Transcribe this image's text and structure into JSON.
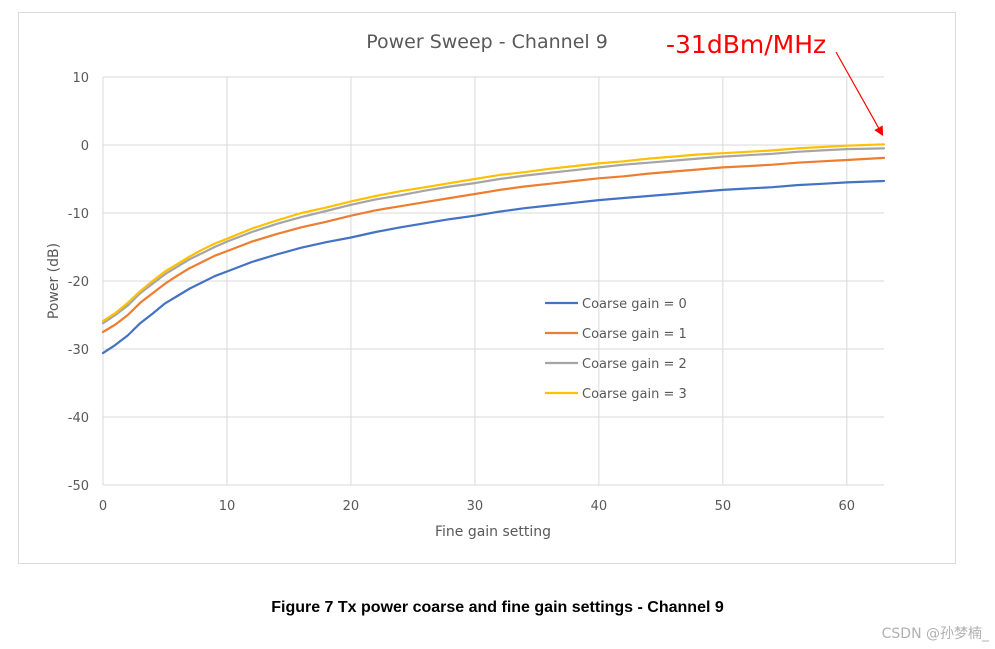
{
  "chart_data": {
    "type": "line",
    "title": "Power Sweep - Channel 9",
    "xlabel": "Fine gain setting",
    "ylabel": "Power (dB)",
    "xlim": [
      0,
      63
    ],
    "ylim": [
      -50,
      10
    ],
    "x_ticks": [
      0,
      10,
      20,
      30,
      40,
      50,
      60
    ],
    "y_ticks": [
      10,
      0,
      -10,
      -20,
      -30,
      -40,
      -50
    ],
    "grid": true,
    "legend_position": "center-right",
    "x": [
      0,
      1,
      2,
      3,
      4,
      5,
      6,
      7,
      8,
      9,
      10,
      12,
      14,
      16,
      18,
      20,
      22,
      24,
      26,
      28,
      30,
      32,
      34,
      36,
      38,
      40,
      42,
      44,
      46,
      48,
      50,
      52,
      54,
      56,
      58,
      60,
      63
    ],
    "series": [
      {
        "name": "Coarse gain = 0",
        "color": "#4472c4",
        "values": [
          -30.6,
          -29.4,
          -28.0,
          -26.2,
          -24.8,
          -23.3,
          -22.2,
          -21.1,
          -20.2,
          -19.3,
          -18.6,
          -17.2,
          -16.1,
          -15.1,
          -14.3,
          -13.6,
          -12.8,
          -12.1,
          -11.5,
          -10.9,
          -10.4,
          -9.8,
          -9.3,
          -8.9,
          -8.5,
          -8.1,
          -7.8,
          -7.5,
          -7.2,
          -6.9,
          -6.6,
          -6.4,
          -6.2,
          -5.9,
          -5.7,
          -5.5,
          -5.3
        ]
      },
      {
        "name": "Coarse gain = 1",
        "color": "#ed7d31",
        "values": [
          -27.5,
          -26.4,
          -25.0,
          -23.2,
          -21.8,
          -20.4,
          -19.2,
          -18.1,
          -17.2,
          -16.3,
          -15.6,
          -14.2,
          -13.1,
          -12.1,
          -11.3,
          -10.4,
          -9.6,
          -9.0,
          -8.4,
          -7.8,
          -7.2,
          -6.6,
          -6.1,
          -5.7,
          -5.3,
          -4.9,
          -4.6,
          -4.2,
          -3.9,
          -3.6,
          -3.3,
          -3.1,
          -2.9,
          -2.6,
          -2.4,
          -2.2,
          -1.9
        ]
      },
      {
        "name": "Coarse gain = 2",
        "color": "#a5a5a5",
        "values": [
          -26.2,
          -25.0,
          -23.6,
          -21.8,
          -20.4,
          -19.0,
          -17.9,
          -16.8,
          -15.9,
          -15.0,
          -14.2,
          -12.8,
          -11.6,
          -10.6,
          -9.7,
          -8.8,
          -8.0,
          -7.4,
          -6.7,
          -6.1,
          -5.6,
          -5.0,
          -4.5,
          -4.1,
          -3.7,
          -3.3,
          -2.9,
          -2.6,
          -2.3,
          -2.0,
          -1.7,
          -1.5,
          -1.3,
          -1.0,
          -0.8,
          -0.6,
          -0.5
        ]
      },
      {
        "name": "Coarse gain = 3",
        "color": "#ffc000",
        "values": [
          -25.9,
          -24.7,
          -23.2,
          -21.5,
          -20.0,
          -18.6,
          -17.5,
          -16.4,
          -15.4,
          -14.5,
          -13.8,
          -12.3,
          -11.1,
          -10.0,
          -9.2,
          -8.3,
          -7.5,
          -6.8,
          -6.2,
          -5.6,
          -5.0,
          -4.4,
          -4.0,
          -3.5,
          -3.1,
          -2.7,
          -2.4,
          -2.0,
          -1.7,
          -1.4,
          -1.2,
          -1.0,
          -0.8,
          -0.5,
          -0.3,
          -0.1,
          0.1
        ]
      }
    ],
    "annotation": {
      "text": "-31dBm/MHz",
      "color": "#ff0000"
    }
  },
  "caption": "Figure 7 Tx power coarse and fine gain settings - Channel 9",
  "watermark": "CSDN @孙梦楠_"
}
